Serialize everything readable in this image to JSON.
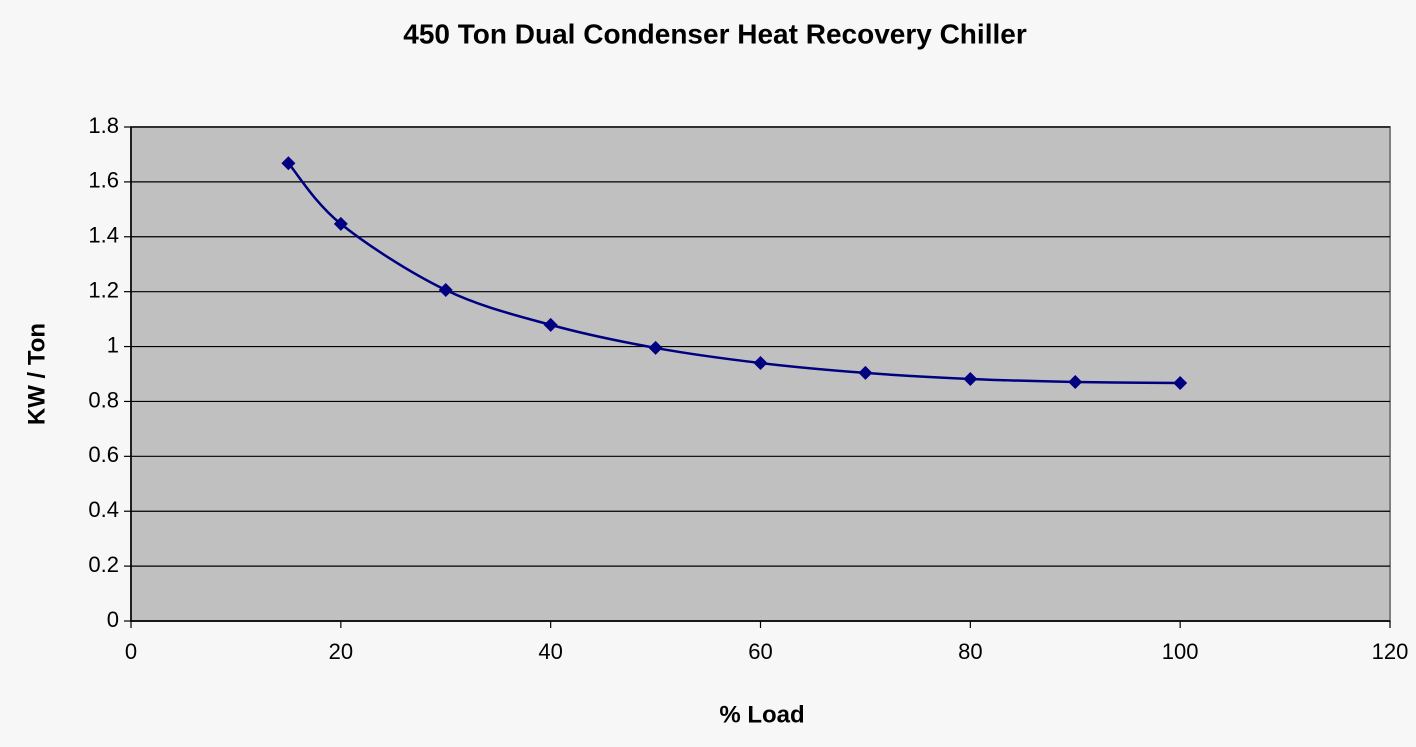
{
  "chart_data": {
    "type": "scatter_smooth",
    "title": "450 Ton Dual Condenser Heat Recovery Chiller",
    "x_label": "% Load",
    "y_label": "KW / Ton",
    "series": [
      {
        "name": "KW / Ton",
        "color": "#000080",
        "x": [
          15,
          20,
          30,
          40,
          50,
          60,
          70,
          80,
          90,
          100
        ],
        "values": [
          1.668,
          1.447,
          1.206,
          1.079,
          0.995,
          0.94,
          0.904,
          0.882,
          0.871,
          0.867
        ]
      }
    ],
    "xlim": [
      0,
      120
    ],
    "xticks": [
      0,
      20,
      40,
      60,
      80,
      100,
      120
    ],
    "ylim": [
      0,
      1.8
    ],
    "yticks": [
      0,
      0.2,
      0.4,
      0.6,
      0.8,
      1,
      1.2,
      1.4,
      1.6,
      1.8
    ],
    "grid": true,
    "plot_background": "#c0c0c0"
  }
}
